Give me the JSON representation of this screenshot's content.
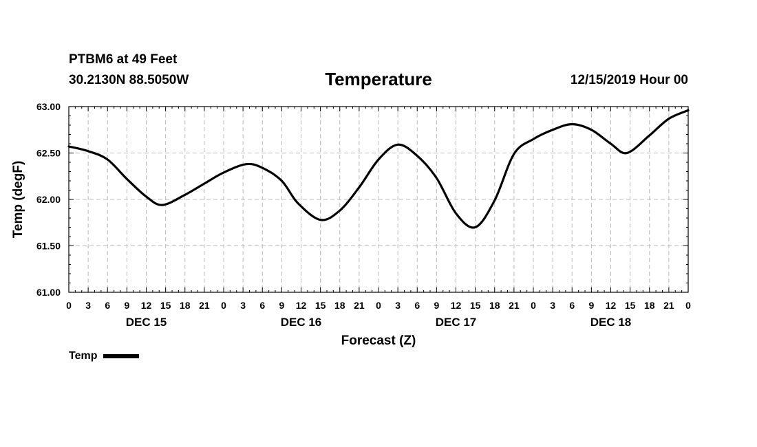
{
  "header": {
    "station": "PTBM6 at 49 Feet",
    "coords": "30.2130N 88.5050W",
    "datetime": "12/15/2019 Hour 00"
  },
  "legend": {
    "label": "Temp"
  },
  "colors": {
    "line": "#000000",
    "grid": "#bbbbbb",
    "axis": "#000000"
  },
  "chart_data": {
    "type": "line",
    "title": "Temperature",
    "xlabel": "Forecast (Z)",
    "ylabel": "Temp (degF)",
    "xlim": [
      0,
      96
    ],
    "ylim": [
      61.0,
      63.0
    ],
    "grid": true,
    "legend_position": "bottom-left",
    "yticks": [
      61.0,
      61.5,
      62.0,
      62.5,
      63.0
    ],
    "ytick_labels": [
      "61.00",
      "61.50",
      "62.00",
      "62.50",
      "63.00"
    ],
    "xticks": [
      0,
      3,
      6,
      9,
      12,
      15,
      18,
      21,
      24,
      27,
      30,
      33,
      36,
      39,
      42,
      45,
      48,
      51,
      54,
      57,
      60,
      63,
      66,
      69,
      72,
      75,
      78,
      81,
      84,
      87,
      90,
      93,
      96
    ],
    "xtick_labels": [
      "0",
      "3",
      "6",
      "9",
      "12",
      "15",
      "18",
      "21",
      "0",
      "3",
      "6",
      "9",
      "12",
      "15",
      "18",
      "21",
      "0",
      "3",
      "6",
      "9",
      "12",
      "15",
      "18",
      "21",
      "0",
      "3",
      "6",
      "9",
      "12",
      "15",
      "18",
      "21",
      "0"
    ],
    "day_labels": [
      {
        "label": "DEC 15",
        "x": 12
      },
      {
        "label": "DEC 16",
        "x": 36
      },
      {
        "label": "DEC 17",
        "x": 60
      },
      {
        "label": "DEC 18",
        "x": 84
      }
    ],
    "series": [
      {
        "name": "Temp",
        "x": [
          0,
          3,
          6,
          9,
          12,
          14.5,
          18,
          21,
          24,
          27.5,
          30,
          33,
          35.5,
          39,
          42,
          45,
          48,
          51,
          54,
          57,
          60,
          63,
          66,
          69,
          72,
          75,
          78,
          81,
          84,
          86.5,
          90,
          93,
          96
        ],
        "values": [
          62.57,
          62.52,
          62.43,
          62.22,
          62.03,
          61.94,
          62.05,
          62.17,
          62.29,
          62.38,
          62.34,
          62.2,
          61.96,
          61.78,
          61.88,
          62.13,
          62.43,
          62.59,
          62.47,
          62.23,
          61.85,
          61.7,
          61.99,
          62.49,
          62.65,
          62.75,
          62.81,
          62.75,
          62.6,
          62.5,
          62.69,
          62.87,
          62.96
        ]
      }
    ]
  }
}
